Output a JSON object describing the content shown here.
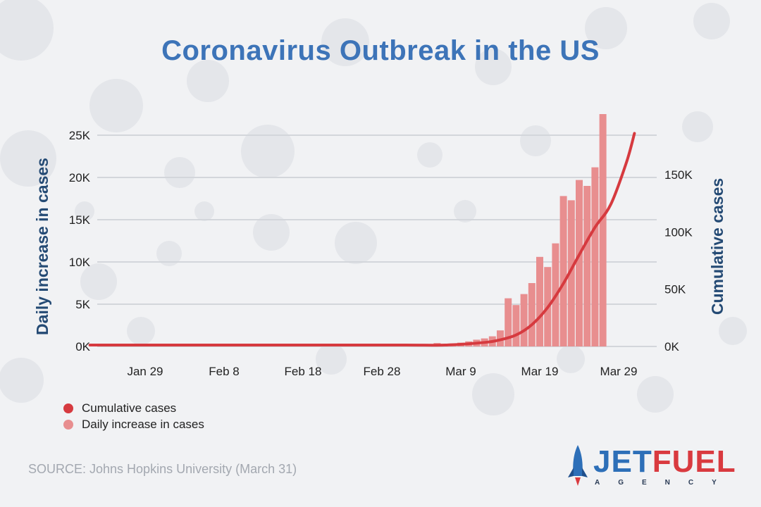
{
  "title": "Coronavirus Outbreak in the US",
  "source": "SOURCE: Johns Hopkins University (March 31)",
  "logo": {
    "part1": "JET",
    "part2": "FUEL",
    "sub": "AGENCY",
    "color1": "#2d6fb8",
    "color2": "#d93a3f"
  },
  "colors": {
    "title": "#3d74b8",
    "axis_label": "#244a74",
    "line": "#d63a3f",
    "bar": "#e88e8f"
  },
  "legend": [
    {
      "label": "Cumulative cases",
      "color": "#d63a3f"
    },
    {
      "label": "Daily increase in cases",
      "color": "#e88e8f"
    }
  ],
  "chart_data": {
    "type": "bar",
    "combo": "bar+line",
    "title": "Coronavirus Outbreak in the US",
    "ylabel": "Daily increase in cases",
    "y2label": "Cumulative cases",
    "ylim": [
      0,
      25000
    ],
    "y2lim": [
      0,
      150000
    ],
    "yticks": [
      "0K",
      "5K",
      "10K",
      "15K",
      "20K",
      "25K"
    ],
    "y2ticks": [
      "0K",
      "50K",
      "100K",
      "150K"
    ],
    "xticks": [
      "Jan 29",
      "Feb 8",
      "Feb 18",
      "Feb 28",
      "Mar 9",
      "Mar 19",
      "Mar 29"
    ],
    "xtick_day_index": [
      7,
      17,
      27,
      37,
      47,
      57,
      67
    ],
    "start_date": "Jan 22",
    "grid": true,
    "legend_position": "bottom-left",
    "series": [
      {
        "name": "Daily increase in cases",
        "kind": "bar",
        "axis": "left",
        "start_day_index": 40,
        "values": [
          100,
          100,
          150,
          200,
          400,
          300,
          350,
          450,
          600,
          800,
          950,
          1200,
          1900,
          5700,
          4900,
          6200,
          7500,
          10600,
          9400,
          12200,
          17800,
          17300,
          19700,
          19000,
          21200,
          27500
        ]
      },
      {
        "name": "Cumulative cases",
        "kind": "line",
        "axis": "right",
        "x_day_index": [
          0,
          10,
          20,
          30,
          40,
          45,
          50,
          52,
          54,
          56,
          58,
          60,
          62,
          64,
          66,
          68,
          69
        ],
        "values": [
          0,
          10,
          20,
          60,
          500,
          1200,
          3500,
          5800,
          10000,
          19000,
          34000,
          55000,
          80000,
          104000,
          124000,
          161000,
          186000
        ]
      }
    ]
  }
}
